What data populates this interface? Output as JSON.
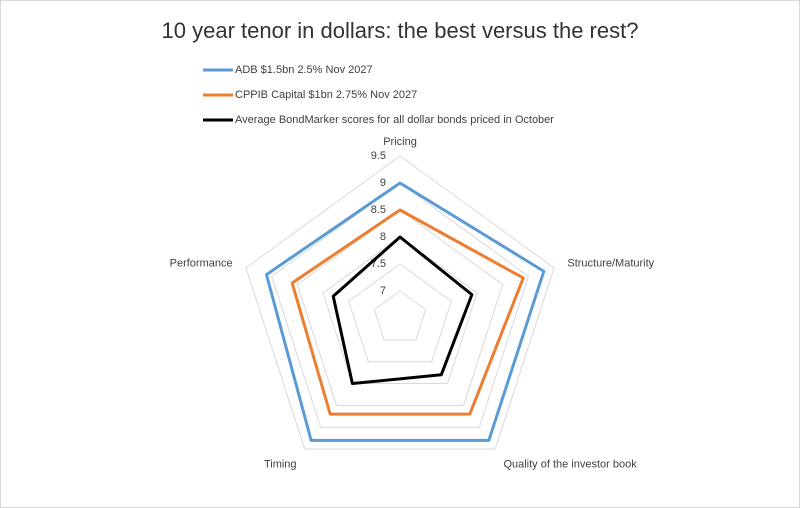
{
  "chart_data": {
    "type": "radar",
    "title": "10 year tenor in dollars: the best versus the rest?",
    "categories": [
      "Pricing",
      "Structure/Maturity",
      "Quality of the investor book",
      "Timing",
      "Performance"
    ],
    "series": [
      {
        "name": "ADB $1.5bn 2.5% Nov 2027",
        "color": "#5b9bd5",
        "values": [
          9.0,
          9.3,
          9.3,
          9.3,
          9.1
        ]
      },
      {
        "name": "CPPIB Capital $1bn 2.75% Nov 2027",
        "color": "#ed7d31",
        "values": [
          8.5,
          8.9,
          8.7,
          8.7,
          8.6
        ]
      },
      {
        "name": "Average BondMarker scores for all dollar bonds priced in October",
        "color": "#000000",
        "values": [
          8.0,
          7.9,
          7.8,
          8.0,
          7.8
        ]
      }
    ],
    "ylim": [
      6.5,
      9.5
    ],
    "yticks": [
      7,
      7.5,
      8,
      8.5,
      9,
      9.5
    ],
    "grid": true
  }
}
